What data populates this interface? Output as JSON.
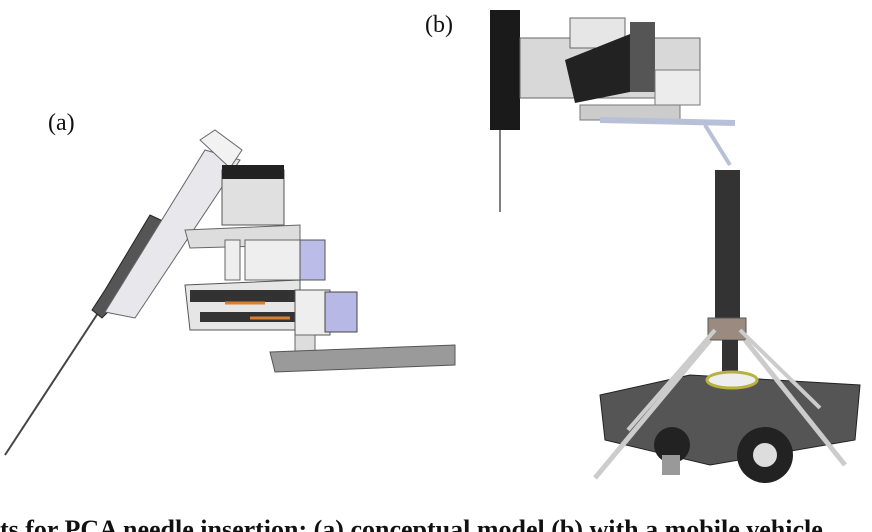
{
  "figure": {
    "panel_a_label": "(a)",
    "panel_b_label": "(b)",
    "caption_fragment": "ts for PCA needle insertion: (a) conceptual model (b) with a mobile vehicle"
  }
}
